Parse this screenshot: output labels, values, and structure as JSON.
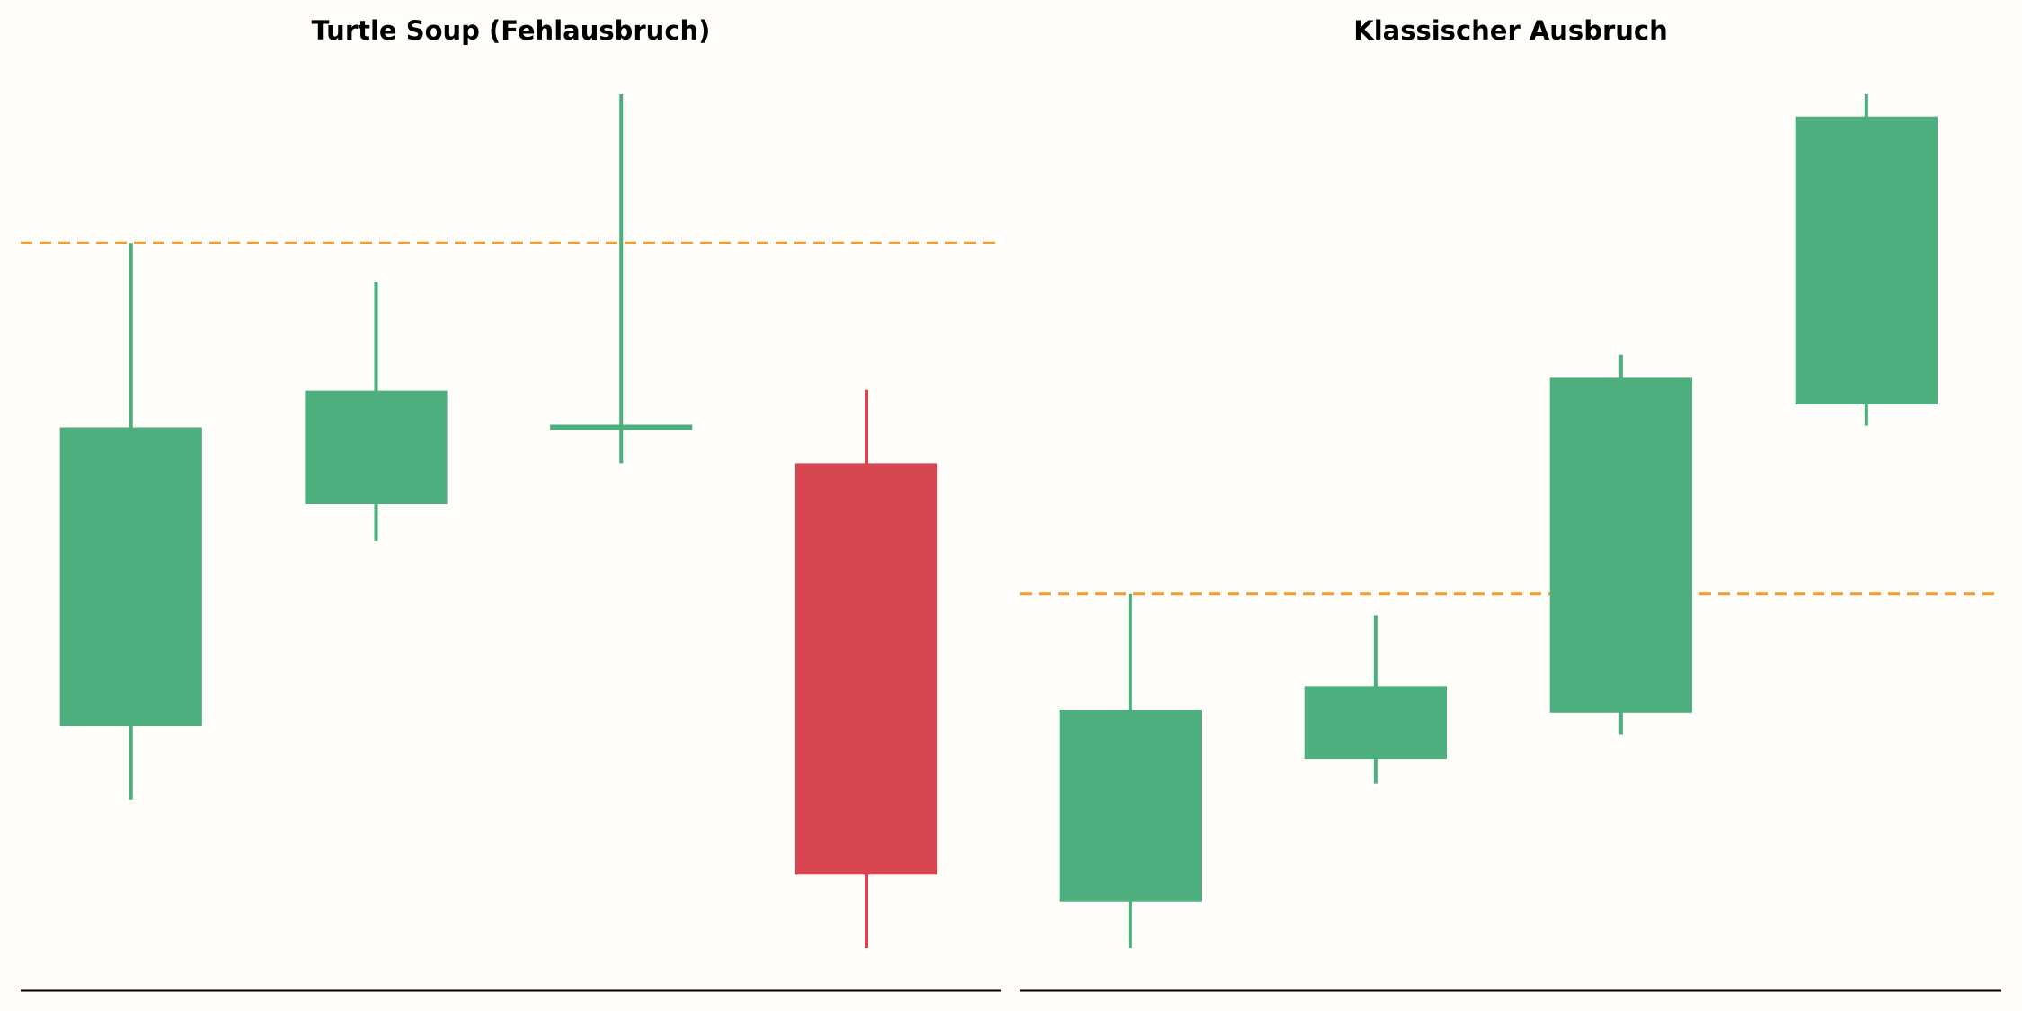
{
  "chart_data": [
    {
      "type": "candlestick",
      "title": "Turtle Soup (Fehlausbruch)",
      "open": [
        26,
        52,
        61,
        56.8
      ],
      "high": [
        82.6,
        78,
        100,
        65.4
      ],
      "low": [
        17.4,
        47.7,
        56.8,
        0
      ],
      "close": [
        61,
        65.3,
        61,
        8.6
      ],
      "level": 82.6,
      "ylim": [
        -5,
        105
      ],
      "up_color": "#4caf7d",
      "down_color": "#d64550",
      "level_color": "#f39c2f"
    },
    {
      "type": "candlestick",
      "title": "Klassischer Ausbruch",
      "open": [
        5.4,
        22.1,
        27.6,
        63.7
      ],
      "high": [
        41.5,
        39,
        69.5,
        100
      ],
      "low": [
        0,
        19.3,
        25,
        61.2
      ],
      "close": [
        27.9,
        30.7,
        66.8,
        97.4
      ],
      "level": 41.5,
      "ylim": [
        -5,
        105
      ],
      "up_color": "#4caf7d",
      "down_color": "#d64550",
      "level_color": "#f39c2f"
    }
  ]
}
